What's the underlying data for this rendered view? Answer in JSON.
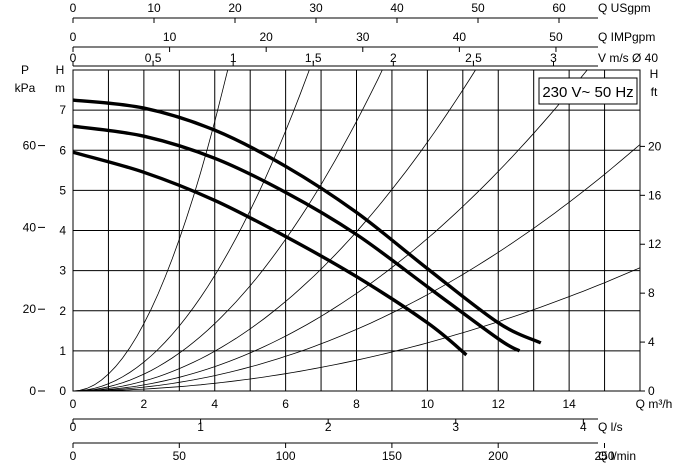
{
  "chart_data": {
    "type": "line",
    "annotation": "230 V~ 50 Hz",
    "main_x": {
      "label": "Q m³/h",
      "min": 0,
      "max": 16,
      "ticks": [
        0,
        2,
        4,
        6,
        8,
        10,
        12,
        14
      ]
    },
    "left_y": {
      "label": "H",
      "unit": "m",
      "min": 0,
      "max": 8,
      "ticks": [
        0,
        1,
        2,
        3,
        4,
        5,
        6,
        7
      ]
    },
    "left_y2": {
      "label": "P",
      "unit": "kPa",
      "ticks": [
        0,
        20,
        40,
        60
      ]
    },
    "right_y": {
      "label": "H",
      "unit": "ft",
      "ticks": [
        0,
        4,
        8,
        12,
        16,
        20
      ]
    },
    "top_axes": [
      {
        "label": "Q USgpm",
        "min": 0,
        "max": 70,
        "ticks": [
          0,
          10,
          20,
          30,
          40,
          50,
          60
        ]
      },
      {
        "label": "Q IMPgpm",
        "min": 0,
        "max": 58.7,
        "ticks": [
          0,
          10,
          20,
          30,
          40,
          50
        ]
      },
      {
        "label": "V m/s Ø 40",
        "min": 0,
        "max": 3.54,
        "tick_labels": [
          "0",
          "0,5",
          "1",
          "1,5",
          "2",
          "2,5",
          "3"
        ],
        "tick_values": [
          0,
          0.5,
          1,
          1.5,
          2,
          2.5,
          3
        ]
      }
    ],
    "bottom_axes": [
      {
        "label": "Q l/s",
        "min": 0,
        "max": 4.444,
        "ticks": [
          0,
          1,
          2,
          3,
          4
        ]
      },
      {
        "label": "Q l/min",
        "min": 0,
        "max": 266.7,
        "ticks": [
          0,
          50,
          100,
          150,
          200,
          250
        ]
      }
    ],
    "series": [
      {
        "x": [
          0,
          2,
          4,
          6,
          8,
          10,
          12,
          13.2
        ],
        "y": [
          7.25,
          7.05,
          6.5,
          5.6,
          4.45,
          3.05,
          1.7,
          1.2
        ]
      },
      {
        "x": [
          0,
          2,
          4,
          6,
          8,
          10,
          12,
          12.6
        ],
        "y": [
          6.6,
          6.35,
          5.8,
          4.95,
          3.9,
          2.6,
          1.3,
          1.0
        ]
      },
      {
        "x": [
          0,
          2,
          4,
          6,
          8,
          10,
          11.1
        ],
        "y": [
          5.95,
          5.45,
          4.75,
          3.85,
          2.85,
          1.7,
          0.9
        ]
      }
    ],
    "system_curve_coefficients": [
      0.42,
      0.18,
      0.105,
      0.062,
      0.038,
      0.024,
      0.012
    ],
    "grid": true
  }
}
